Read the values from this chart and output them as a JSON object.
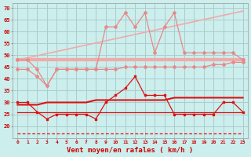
{
  "x": [
    0,
    1,
    2,
    3,
    4,
    5,
    6,
    7,
    8,
    9,
    10,
    11,
    12,
    13,
    14,
    15,
    16,
    17,
    18,
    19,
    20,
    21,
    22,
    23
  ],
  "diag_line": [
    48,
    48.9,
    49.8,
    50.7,
    51.6,
    52.5,
    53.4,
    54.3,
    55.2,
    56.1,
    57.0,
    57.9,
    58.8,
    59.7,
    60.6,
    61.5,
    62.4,
    63.3,
    64.2,
    65.1,
    66.0,
    66.9,
    67.8,
    68.7
  ],
  "horiz_line": [
    48,
    48,
    48,
    48,
    48,
    48,
    48,
    48,
    48,
    48,
    48,
    48,
    48,
    48,
    48,
    48,
    48,
    48,
    48,
    48,
    48,
    48,
    48,
    48
  ],
  "pink_wiggly": [
    48,
    48,
    44,
    37,
    44,
    44,
    44,
    44,
    44,
    62,
    62,
    68,
    62,
    68,
    51,
    62,
    68,
    51,
    51,
    51,
    51,
    51,
    51,
    48
  ],
  "pink_lower": [
    44,
    44,
    41,
    37,
    44,
    44,
    44,
    44,
    44,
    44,
    44,
    45,
    45,
    45,
    45,
    45,
    45,
    45,
    45,
    45,
    46,
    46,
    47,
    47
  ],
  "red_wiggly": [
    30,
    30,
    26,
    23,
    25,
    25,
    25,
    25,
    23,
    30,
    33,
    36,
    41,
    33,
    33,
    33,
    25,
    25,
    25,
    25,
    25,
    30,
    30,
    26
  ],
  "red_rising": [
    29,
    29,
    29,
    30,
    30,
    30,
    30,
    30,
    31,
    31,
    31,
    31,
    31,
    31,
    31,
    31,
    32,
    32,
    32,
    32,
    32,
    32,
    32,
    32
  ],
  "red_flat": [
    26,
    26,
    26,
    26,
    26,
    26,
    26,
    26,
    26,
    26,
    26,
    26,
    26,
    26,
    26,
    26,
    26,
    26,
    26,
    26,
    26,
    26,
    26,
    26
  ],
  "red_dashed": [
    17,
    17,
    17,
    17,
    17,
    17,
    17,
    17,
    17,
    17,
    17,
    17,
    17,
    17,
    17,
    17,
    17,
    17,
    17,
    17,
    17,
    17,
    17,
    17
  ],
  "bg_color": "#cceeed",
  "grid_color": "#aacccc",
  "xlabel": "Vent moyen/en rafales ( km/h )",
  "xlabel_color": "#cc0000",
  "tick_color": "#cc0000",
  "ylim": [
    15,
    72
  ],
  "yticks": [
    20,
    25,
    30,
    35,
    40,
    45,
    50,
    55,
    60,
    65,
    70
  ],
  "color_light_pink": "#f0aaaa",
  "color_medium_pink": "#e88888",
  "color_red": "#dd1111",
  "color_dashed": "#dd1111"
}
